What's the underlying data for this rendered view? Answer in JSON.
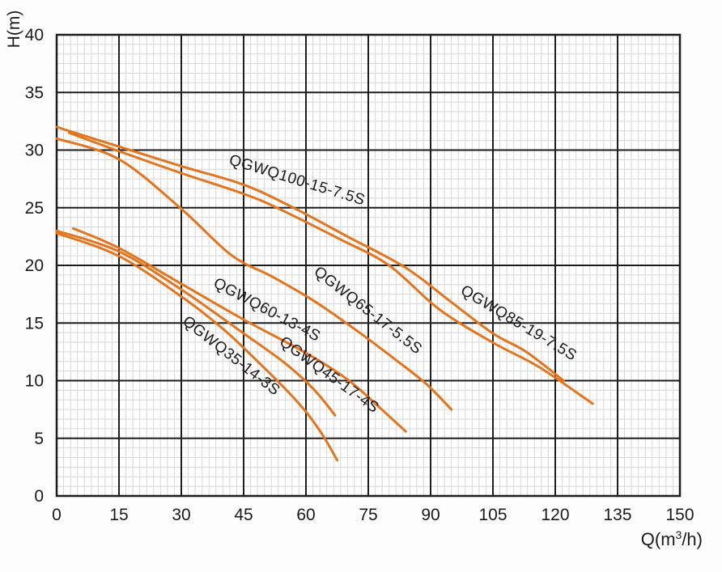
{
  "chart": {
    "colors": {
      "curve": "#E2751D",
      "grid_major": "#1d1d1d",
      "grid_minor": "#d7d7d7",
      "text": "#1a1a1a",
      "plot_bg": "#fefefe"
    }
  },
  "chart_data": {
    "type": "line",
    "title": "",
    "xlabel": "Q(m³/h)",
    "xlabel_parts": {
      "pre": "Q(m",
      "sup": "3",
      "post": "/h)"
    },
    "ylabel": "H(m)",
    "xlim": [
      0,
      150
    ],
    "ylim": [
      0,
      40
    ],
    "x_major_step": 15,
    "y_major_step": 5,
    "x_minor_per_major": 9,
    "y_minor_per_major": 6,
    "x_ticks": [
      0,
      15,
      30,
      45,
      60,
      75,
      90,
      105,
      120,
      135,
      150
    ],
    "y_ticks": [
      0,
      5,
      10,
      15,
      20,
      25,
      30,
      35,
      40
    ],
    "grid": "on",
    "legend_position": "labels-on-curves",
    "series": [
      {
        "name": "QGWQ100-15-7.5S",
        "points": [
          [
            0,
            32
          ],
          [
            15,
            30.3
          ],
          [
            30,
            28.6
          ],
          [
            45,
            27.0
          ],
          [
            57,
            25.0
          ],
          [
            70,
            22.5
          ],
          [
            84,
            19.8
          ],
          [
            95,
            16.8
          ],
          [
            105,
            14.1
          ],
          [
            113,
            12.5
          ],
          [
            122,
            10.0
          ]
        ],
        "label": {
          "q": 41.3,
          "h": 28.8,
          "angle": 17
        }
      },
      {
        "name": "QGWQ85-19-7.5S",
        "points": [
          [
            3,
            31.5
          ],
          [
            15,
            29.9
          ],
          [
            30,
            28.0
          ],
          [
            45,
            26.2
          ],
          [
            53,
            25.0
          ],
          [
            68,
            22.3
          ],
          [
            80,
            20.0
          ],
          [
            92,
            16.2
          ],
          [
            105,
            13.3
          ],
          [
            116,
            11.2
          ],
          [
            129,
            8.0
          ]
        ],
        "label": {
          "q": 97.0,
          "h": 17.6,
          "angle": 31
        }
      },
      {
        "name": "QGWQ65-17-5.5S",
        "points": [
          [
            0,
            31.0
          ],
          [
            15,
            29.2
          ],
          [
            30,
            24.9
          ],
          [
            42,
            20.9
          ],
          [
            52,
            19.0
          ],
          [
            62,
            16.9
          ],
          [
            72,
            14.4
          ],
          [
            82,
            11.7
          ],
          [
            89,
            9.7
          ],
          [
            95,
            7.5
          ]
        ],
        "label": {
          "q": 61.7,
          "h": 19.3,
          "angle": 38
        }
      },
      {
        "name": "QGWQ60-13-4S",
        "points": [
          [
            4,
            23.2
          ],
          [
            15,
            21.5
          ],
          [
            30,
            18.4
          ],
          [
            45,
            15.3
          ],
          [
            60,
            12.4
          ],
          [
            70,
            10.1
          ],
          [
            77,
            7.9
          ],
          [
            84,
            5.6
          ]
        ],
        "label": {
          "q": 37.5,
          "h": 18.2,
          "angle": 28
        }
      },
      {
        "name": "QGWQ45-17-4S",
        "points": [
          [
            0,
            23.0
          ],
          [
            15,
            21.2
          ],
          [
            30,
            17.9
          ],
          [
            45,
            14.1
          ],
          [
            55,
            11.5
          ],
          [
            62,
            9.2
          ],
          [
            67,
            7.0
          ]
        ],
        "label": {
          "q": 53.4,
          "h": 13.2,
          "angle": 36
        }
      },
      {
        "name": "QGWQ35-14-3S",
        "points": [
          [
            0,
            22.8
          ],
          [
            15,
            20.8
          ],
          [
            30,
            17.3
          ],
          [
            40,
            14.5
          ],
          [
            48,
            11.8
          ],
          [
            55,
            9.3
          ],
          [
            60,
            7.3
          ],
          [
            64,
            5.3
          ],
          [
            67.5,
            3.1
          ]
        ],
        "label": {
          "q": 30.1,
          "h": 15.0,
          "angle": 38
        }
      }
    ]
  }
}
